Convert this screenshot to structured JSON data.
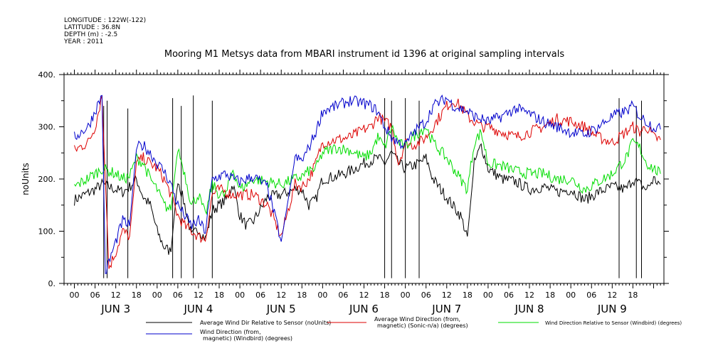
{
  "header": {
    "longitude": "LONGITUDE : 122W(-122)",
    "latitude": "LATITUDE : 36.8N",
    "depth": "DEPTH (m) : -2.5",
    "year": "YEAR : 2011"
  },
  "colors": {
    "black_series": "#000000",
    "red_series": "#dd0000",
    "green_series": "#00dd00",
    "blue_series": "#0000cc"
  },
  "chart_data": {
    "type": "line",
    "title": "Mooring M1 Metsys data from MBARI instrument id 1396 at original sampling intervals",
    "ylabel": "noUnits",
    "xlabel": "",
    "ylim": [
      0,
      400
    ],
    "yticks": [
      "0.",
      "100.",
      "200.",
      "300.",
      "400."
    ],
    "xlim_hours": [
      -3,
      171
    ],
    "hour_ticks": [
      "00",
      "06",
      "12",
      "18",
      "00",
      "06",
      "12",
      "18",
      "00",
      "06",
      "12",
      "18",
      "00",
      "06",
      "12",
      "18",
      "00",
      "06",
      "12",
      "18",
      "00",
      "06",
      "12",
      "18",
      "00",
      "06",
      "12",
      "18"
    ],
    "day_labels": [
      "JUN  3",
      "JUN  4",
      "JUN  5",
      "JUN  6",
      "JUN  7",
      "JUN  8",
      "JUN  9"
    ],
    "legend": [
      "Average Wind Dir Relative to Sensor (noUnits)",
      "Average Wind Direction (from, magnetic) (Sonic-n/a) (degrees)",
      "Wind Direction Relative to Sensor (Windbird) (degrees)",
      "Wind Direction (from, magnetic) (Windbird) (degrees)"
    ],
    "series": [
      {
        "name": "Average Wind Dir Relative to Sensor (noUnits)",
        "color": "#000000",
        "x": [
          0,
          6,
          8,
          10,
          12,
          14,
          16,
          18,
          20,
          22,
          24,
          26,
          28,
          30,
          32,
          34,
          36,
          38,
          40,
          42,
          44,
          46,
          48,
          50,
          52,
          56,
          60,
          64,
          66,
          68,
          70,
          72,
          76,
          80,
          84,
          86,
          88,
          90,
          92,
          94,
          96,
          98,
          100,
          102,
          104,
          108,
          112,
          114,
          116,
          118,
          120,
          124,
          128,
          132,
          136,
          140,
          144,
          148,
          152,
          156,
          160,
          162,
          164,
          166,
          168,
          170
        ],
        "y": [
          160,
          180,
          190,
          185,
          180,
          175,
          185,
          200,
          165,
          150,
          100,
          70,
          60,
          200,
          150,
          90,
          105,
          85,
          140,
          150,
          160,
          190,
          130,
          110,
          120,
          165,
          170,
          180,
          180,
          150,
          160,
          200,
          205,
          215,
          230,
          235,
          240,
          230,
          250,
          230,
          220,
          225,
          230,
          240,
          200,
          165,
          130,
          90,
          230,
          265,
          220,
          200,
          195,
          180,
          185,
          175,
          180,
          160,
          175,
          185,
          180,
          200,
          190,
          180,
          200,
          190
        ],
        "spikes_x": [
          8.5,
          9.5,
          15.5,
          28.5,
          31,
          34.5,
          40,
          90,
          92,
          96,
          100,
          158,
          163,
          164.5
        ],
        "spikes_y": [
          340,
          350,
          335,
          355,
          340,
          360,
          350,
          355,
          350,
          355,
          350,
          355,
          340,
          350
        ]
      },
      {
        "name": "Average Wind Direction (from, magnetic) (Sonic-n/a) (degrees)",
        "color": "#dd0000",
        "x": [
          0,
          4,
          6,
          8,
          10,
          12,
          14,
          16,
          18,
          20,
          22,
          24,
          26,
          28,
          30,
          32,
          34,
          36,
          38,
          40,
          42,
          44,
          46,
          48,
          52,
          56,
          60,
          64,
          66,
          68,
          70,
          72,
          76,
          80,
          84,
          86,
          88,
          90,
          92,
          94,
          96,
          98,
          100,
          102,
          104,
          108,
          110,
          112,
          114,
          116,
          118,
          120,
          124,
          128,
          132,
          136,
          140,
          144,
          148,
          152,
          156,
          160,
          162,
          164,
          166,
          168,
          170
        ],
        "y": [
          255,
          270,
          300,
          360,
          30,
          60,
          100,
          90,
          230,
          240,
          230,
          220,
          200,
          170,
          130,
          110,
          100,
          90,
          85,
          170,
          180,
          175,
          170,
          170,
          170,
          150,
          90,
          190,
          185,
          200,
          230,
          270,
          275,
          280,
          295,
          300,
          320,
          310,
          300,
          230,
          270,
          265,
          270,
          280,
          300,
          340,
          350,
          340,
          320,
          310,
          300,
          300,
          290,
          280,
          290,
          300,
          315,
          310,
          300,
          280,
          270,
          290,
          300,
          290,
          300,
          280,
          275
        ]
      },
      {
        "name": "Wind Direction Relative to Sensor (Windbird) (degrees)",
        "color": "#00dd00",
        "x": [
          0,
          6,
          8,
          10,
          12,
          14,
          16,
          18,
          20,
          22,
          24,
          26,
          28,
          30,
          32,
          34,
          36,
          38,
          40,
          42,
          44,
          46,
          48,
          52,
          56,
          60,
          64,
          66,
          68,
          70,
          72,
          76,
          80,
          84,
          86,
          88,
          90,
          92,
          94,
          96,
          98,
          100,
          102,
          104,
          108,
          112,
          114,
          116,
          118,
          120,
          124,
          128,
          132,
          136,
          140,
          144,
          148,
          152,
          156,
          160,
          162,
          164,
          166,
          168,
          170
        ],
        "y": [
          185,
          210,
          220,
          215,
          210,
          200,
          205,
          240,
          230,
          200,
          180,
          150,
          140,
          260,
          210,
          150,
          170,
          130,
          190,
          170,
          170,
          220,
          180,
          200,
          195,
          190,
          200,
          205,
          215,
          220,
          250,
          260,
          255,
          240,
          250,
          280,
          260,
          300,
          270,
          260,
          280,
          290,
          300,
          270,
          240,
          200,
          180,
          270,
          290,
          230,
          225,
          215,
          210,
          210,
          200,
          200,
          180,
          195,
          210,
          240,
          270,
          260,
          230,
          220,
          210
        ]
      },
      {
        "name": "Wind Direction (from, magnetic) (Windbird) (degrees)",
        "color": "#0000cc",
        "x": [
          0,
          4,
          6,
          8,
          9,
          10,
          12,
          14,
          16,
          18,
          20,
          22,
          24,
          26,
          28,
          30,
          32,
          34,
          36,
          38,
          40,
          42,
          44,
          46,
          48,
          52,
          56,
          60,
          64,
          66,
          68,
          70,
          72,
          76,
          80,
          84,
          86,
          88,
          90,
          92,
          94,
          96,
          98,
          100,
          102,
          104,
          108,
          110,
          112,
          114,
          116,
          118,
          120,
          124,
          128,
          132,
          136,
          140,
          144,
          148,
          152,
          156,
          160,
          162,
          164,
          166,
          168,
          170
        ],
        "y": [
          280,
          300,
          330,
          360,
          20,
          40,
          80,
          120,
          110,
          260,
          265,
          250,
          230,
          215,
          190,
          150,
          130,
          110,
          120,
          100,
          200,
          205,
          210,
          200,
          195,
          205,
          185,
          80,
          240,
          235,
          260,
          290,
          330,
          340,
          350,
          345,
          340,
          330,
          300,
          280,
          270,
          265,
          285,
          300,
          310,
          340,
          355,
          340,
          335,
          330,
          320,
          315,
          310,
          320,
          335,
          325,
          310,
          300,
          290,
          285,
          300,
          320,
          330,
          340,
          320,
          310,
          300,
          295
        ]
      }
    ]
  }
}
